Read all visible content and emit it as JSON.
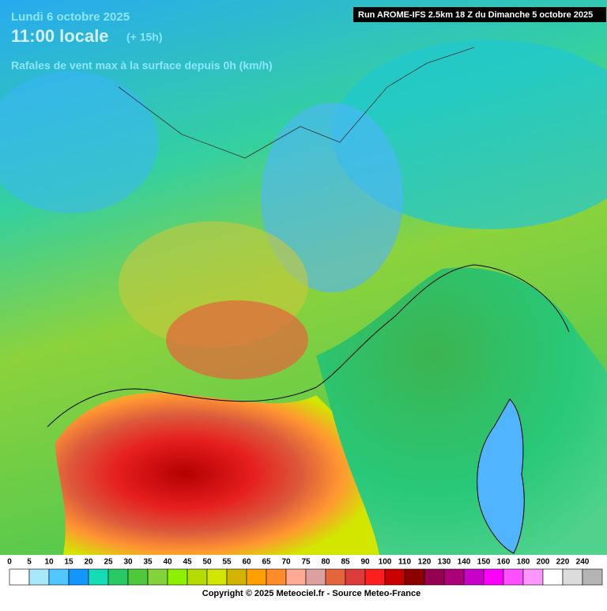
{
  "header": {
    "date": "Lundi 6 octobre 2025",
    "time": "11:00 locale",
    "lead": "(+ 15h)",
    "subtitle": "Rafales de vent max à la surface depuis 0h (km/h)",
    "run": "Run AROME-IFS 2.5km 18 Z du Dimanche 5 octobre 2025"
  },
  "legend": {
    "labels": [
      0,
      5,
      10,
      15,
      20,
      25,
      30,
      35,
      40,
      45,
      50,
      55,
      60,
      65,
      70,
      75,
      80,
      85,
      90,
      100,
      110,
      120,
      130,
      140,
      150,
      160,
      180,
      200,
      220,
      240
    ],
    "colors": [
      "#ffffff",
      "#a8e8ff",
      "#50c8ff",
      "#1496ff",
      "#14dcb4",
      "#28c864",
      "#50c83c",
      "#82d23c",
      "#8cf000",
      "#b4dc00",
      "#d2e600",
      "#d2b400",
      "#ffa000",
      "#ff8c28",
      "#ffaa96",
      "#dca0a0",
      "#e6643c",
      "#dc3c3c",
      "#ff1e1e",
      "#c80000",
      "#8c0000",
      "#960050",
      "#aa0078",
      "#c800c8",
      "#ff00ff",
      "#ff50ff",
      "#ff96ff",
      "#ffffff",
      "#dcdcdc",
      "#b4b4b4"
    ]
  },
  "footer": {
    "copyright": "Copyright © 2025 Meteociel.fr - Source Meteo-France"
  }
}
